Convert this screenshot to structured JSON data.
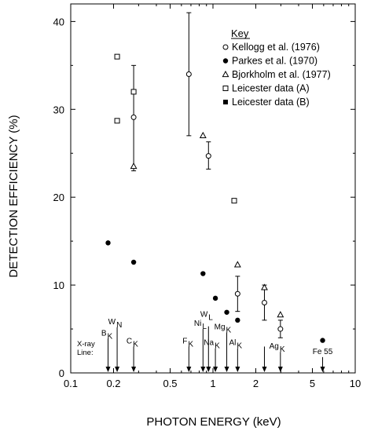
{
  "chart_data": {
    "type": "scatter",
    "xlabel": "PHOTON ENERGY (keV)",
    "ylabel": "DETECTION EFFICIENCY (%)",
    "xscale": "log",
    "xlim": [
      0.1,
      10
    ],
    "ylim": [
      0,
      42
    ],
    "xticks": [
      {
        "value": 0.1,
        "label": "0.1"
      },
      {
        "value": 0.2,
        "label": "0.2"
      },
      {
        "value": 0.5,
        "label": "0.5"
      },
      {
        "value": 1,
        "label": "1"
      },
      {
        "value": 2,
        "label": "2"
      },
      {
        "value": 5,
        "label": "5"
      },
      {
        "value": 10,
        "label": "10"
      }
    ],
    "yticks": [
      0,
      10,
      20,
      30,
      40
    ],
    "grid": false,
    "legend": {
      "title": "Key",
      "position": "top-right",
      "entries": [
        {
          "label": "Kellogg et al. (1976)",
          "marker": "open-circle"
        },
        {
          "label": "Parkes et al. (1970)",
          "marker": "filled-circle"
        },
        {
          "label": "Bjorkholm et al. (1977)",
          "marker": "open-triangle"
        },
        {
          "label": "Leicester data (A)",
          "marker": "open-square"
        },
        {
          "label": "Leicester data (B)",
          "marker": "filled-square"
        }
      ]
    },
    "series": [
      {
        "name": "Kellogg et al. (1976)",
        "marker": "open-circle",
        "points": [
          {
            "x": 0.277,
            "y": 29.1,
            "yerr_low": 23.0,
            "yerr_high": 35.0
          },
          {
            "x": 0.677,
            "y": 34.0,
            "yerr_low": 27.0,
            "yerr_high": 41.0
          },
          {
            "x": 0.93,
            "y": 24.7,
            "yerr_low": 23.2,
            "yerr_high": 26.3
          },
          {
            "x": 1.49,
            "y": 9.0,
            "yerr_low": 7.0,
            "yerr_high": 11.0
          },
          {
            "x": 2.3,
            "y": 8.0,
            "yerr_low": 6.0,
            "yerr_high": 10.0
          },
          {
            "x": 2.98,
            "y": 5.0,
            "yerr_low": 4.0,
            "yerr_high": 6.0
          }
        ]
      },
      {
        "name": "Parkes et al. (1970)",
        "marker": "filled-circle",
        "points": [
          {
            "x": 0.183,
            "y": 14.8
          },
          {
            "x": 0.277,
            "y": 12.6
          },
          {
            "x": 0.851,
            "y": 11.3
          },
          {
            "x": 1.04,
            "y": 8.5
          },
          {
            "x": 1.25,
            "y": 6.9
          },
          {
            "x": 1.49,
            "y": 6.0
          },
          {
            "x": 5.9,
            "y": 3.7
          }
        ]
      },
      {
        "name": "Bjorkholm et al. (1977)",
        "marker": "open-triangle",
        "points": [
          {
            "x": 0.277,
            "y": 23.5
          },
          {
            "x": 0.851,
            "y": 27.0
          },
          {
            "x": 1.49,
            "y": 12.3
          },
          {
            "x": 2.3,
            "y": 9.7
          },
          {
            "x": 2.98,
            "y": 6.6
          }
        ]
      },
      {
        "name": "Leicester data (A)",
        "marker": "open-square",
        "points": [
          {
            "x": 0.212,
            "y": 36.0
          },
          {
            "x": 0.277,
            "y": 32.0
          },
          {
            "x": 0.212,
            "y": 28.7
          },
          {
            "x": 1.41,
            "y": 19.6
          }
        ]
      },
      {
        "name": "Leicester data (B)",
        "marker": "filled-square",
        "points": []
      }
    ],
    "xray_lines": {
      "title_line1": "X-ray",
      "title_line2": "Line:",
      "lines": [
        {
          "x": 0.183,
          "main": "B",
          "sub": "K",
          "height": 3.9
        },
        {
          "x": 0.212,
          "main": "W",
          "sub": "N",
          "height": 5.2
        },
        {
          "x": 0.277,
          "main": "C",
          "sub": "K",
          "height": 3.0
        },
        {
          "x": 0.677,
          "main": "F",
          "sub": "K",
          "height": 3.0
        },
        {
          "x": 0.851,
          "main": "Ni",
          "sub": "L",
          "height": 5.0
        },
        {
          "x": 0.93,
          "main": "",
          "sub": "",
          "height": 5.3
        },
        {
          "x": 1.04,
          "main": "Na",
          "sub": "K",
          "height": 2.8
        },
        {
          "x": 1.25,
          "main": "Mg",
          "sub": "K",
          "height": 4.6
        },
        {
          "x": 1.49,
          "main": "Al",
          "sub": "K",
          "height": 2.8
        },
        {
          "x": 2.3,
          "main": "",
          "sub": "",
          "height": 3.0
        },
        {
          "x": 2.98,
          "main": "Ag",
          "sub": "K",
          "height": 2.4
        },
        {
          "x": 5.9,
          "main": "Fe 55",
          "sub": "",
          "height": 1.8
        }
      ],
      "extra_label": {
        "main": "W",
        "sub": "L",
        "x": 0.93
      }
    }
  }
}
